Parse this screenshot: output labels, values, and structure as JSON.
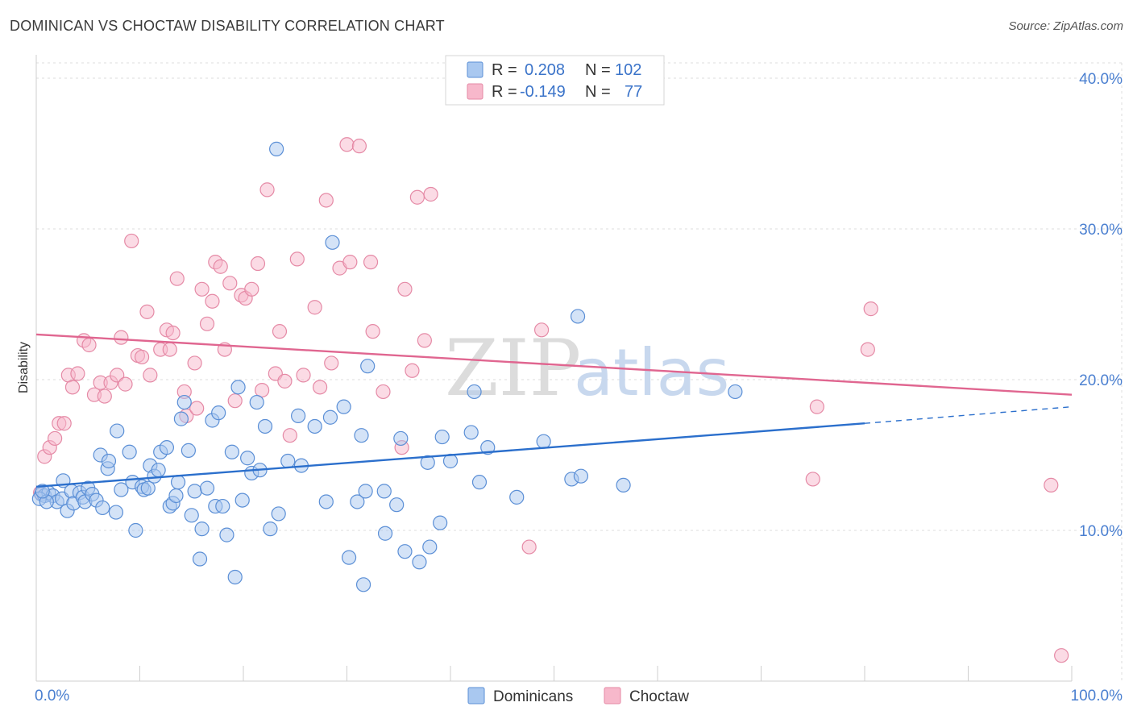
{
  "title": "DOMINICAN VS CHOCTAW DISABILITY CORRELATION CHART",
  "source": "Source: ZipAtlas.com",
  "watermark": {
    "zip": "ZIP",
    "atlas": "atlas"
  },
  "colors": {
    "dominican_fill": "#a9c8f0",
    "dominican_stroke": "#5b8fd6",
    "dominican_line": "#2b6fcc",
    "choctaw_fill": "#f7b8cb",
    "choctaw_stroke": "#e58aa6",
    "choctaw_line": "#e06690",
    "tick_label": "#4a7fd0",
    "grid": "#dddddd"
  },
  "legend": {
    "rows": [
      {
        "r_label": "R =",
        "r_value": "0.208",
        "n_label": "N =",
        "n_value": "102"
      },
      {
        "r_label": "R =",
        "r_value": "-0.149",
        "n_label": "N =",
        "n_value": "77"
      }
    ]
  },
  "chart_data": {
    "type": "scatter",
    "title": "DOMINICAN VS CHOCTAW DISABILITY CORRELATION CHART",
    "xlabel": "",
    "ylabel": "Disability",
    "xlim": [
      0,
      100
    ],
    "ylim": [
      0,
      40
    ],
    "x_tick_labels": [
      "0.0%",
      "100.0%"
    ],
    "y_ticks": [
      10,
      20,
      30,
      40
    ],
    "y_tick_labels": [
      "10.0%",
      "20.0%",
      "30.0%",
      "40.0%"
    ],
    "grid": true,
    "legend_position": "top-center",
    "series": [
      {
        "name": "Dominicans",
        "r": 0.208,
        "n": 102,
        "trend": {
          "x0": 0,
          "y0": 12.9,
          "x1": 80,
          "y1": 17.1,
          "dashed_to_x": 100,
          "dashed_to_y": 18.2
        },
        "points": [
          [
            0.5,
            12.4
          ],
          [
            0.8,
            12.3
          ],
          [
            1.2,
            12.5
          ],
          [
            1.6,
            12.3
          ],
          [
            2.0,
            11.9
          ],
          [
            2.5,
            12.1
          ],
          [
            2.6,
            13.3
          ],
          [
            3.0,
            11.3
          ],
          [
            3.4,
            12.6
          ],
          [
            3.6,
            11.8
          ],
          [
            4.2,
            12.5
          ],
          [
            4.5,
            12.2
          ],
          [
            4.7,
            11.9
          ],
          [
            5.0,
            12.8
          ],
          [
            5.4,
            12.4
          ],
          [
            5.8,
            12.0
          ],
          [
            6.2,
            15.0
          ],
          [
            6.4,
            11.5
          ],
          [
            6.9,
            14.1
          ],
          [
            7.0,
            14.6
          ],
          [
            7.7,
            11.2
          ],
          [
            7.8,
            16.6
          ],
          [
            8.2,
            12.7
          ],
          [
            9.0,
            15.2
          ],
          [
            9.3,
            13.2
          ],
          [
            9.6,
            10.0
          ],
          [
            10.2,
            12.9
          ],
          [
            10.4,
            12.7
          ],
          [
            10.8,
            12.8
          ],
          [
            11.0,
            14.3
          ],
          [
            11.4,
            13.6
          ],
          [
            11.8,
            14.0
          ],
          [
            12.0,
            15.2
          ],
          [
            12.6,
            15.5
          ],
          [
            12.9,
            11.6
          ],
          [
            13.2,
            11.8
          ],
          [
            13.5,
            12.3
          ],
          [
            13.7,
            13.2
          ],
          [
            14.0,
            17.4
          ],
          [
            14.3,
            18.5
          ],
          [
            14.7,
            15.3
          ],
          [
            15.0,
            11.0
          ],
          [
            15.3,
            12.6
          ],
          [
            15.8,
            8.1
          ],
          [
            16.0,
            10.1
          ],
          [
            16.5,
            12.8
          ],
          [
            17.0,
            17.3
          ],
          [
            17.3,
            11.6
          ],
          [
            17.6,
            17.8
          ],
          [
            18.0,
            11.6
          ],
          [
            18.4,
            9.7
          ],
          [
            18.9,
            15.2
          ],
          [
            19.2,
            6.9
          ],
          [
            19.5,
            19.5
          ],
          [
            19.9,
            12.0
          ],
          [
            20.4,
            14.8
          ],
          [
            20.8,
            13.8
          ],
          [
            21.3,
            18.5
          ],
          [
            21.6,
            14.0
          ],
          [
            22.1,
            16.9
          ],
          [
            22.6,
            10.1
          ],
          [
            23.2,
            35.3
          ],
          [
            23.4,
            11.1
          ],
          [
            24.3,
            14.6
          ],
          [
            25.3,
            17.6
          ],
          [
            25.6,
            14.3
          ],
          [
            26.9,
            16.9
          ],
          [
            28.0,
            11.9
          ],
          [
            28.4,
            17.5
          ],
          [
            28.6,
            29.1
          ],
          [
            29.7,
            18.2
          ],
          [
            30.2,
            8.2
          ],
          [
            31.0,
            11.9
          ],
          [
            31.4,
            16.3
          ],
          [
            31.6,
            6.4
          ],
          [
            31.8,
            12.6
          ],
          [
            32.0,
            20.9
          ],
          [
            33.7,
            9.8
          ],
          [
            33.6,
            12.6
          ],
          [
            34.8,
            11.7
          ],
          [
            35.2,
            16.1
          ],
          [
            35.6,
            8.6
          ],
          [
            37.0,
            7.9
          ],
          [
            37.8,
            14.5
          ],
          [
            38.0,
            8.9
          ],
          [
            39.0,
            10.5
          ],
          [
            39.2,
            16.2
          ],
          [
            40.0,
            14.6
          ],
          [
            42.0,
            16.5
          ],
          [
            42.3,
            19.2
          ],
          [
            42.8,
            13.2
          ],
          [
            43.6,
            15.5
          ],
          [
            46.4,
            12.2
          ],
          [
            49.0,
            15.9
          ],
          [
            51.7,
            13.4
          ],
          [
            52.3,
            24.2
          ],
          [
            52.6,
            13.6
          ],
          [
            56.7,
            13.0
          ],
          [
            67.5,
            19.2
          ],
          [
            0.3,
            12.1
          ],
          [
            1.0,
            11.9
          ],
          [
            0.6,
            12.6
          ]
        ]
      },
      {
        "name": "Choctaw",
        "r": -0.149,
        "n": 77,
        "trend": {
          "x0": 0,
          "y0": 23.0,
          "x1": 100,
          "y1": 19.0
        },
        "points": [
          [
            0.4,
            12.5
          ],
          [
            0.8,
            14.9
          ],
          [
            1.3,
            15.5
          ],
          [
            1.8,
            16.1
          ],
          [
            2.2,
            17.1
          ],
          [
            2.7,
            17.1
          ],
          [
            3.1,
            20.3
          ],
          [
            3.5,
            19.5
          ],
          [
            4.0,
            20.4
          ],
          [
            4.6,
            22.6
          ],
          [
            5.1,
            22.3
          ],
          [
            5.6,
            19.0
          ],
          [
            6.2,
            19.8
          ],
          [
            6.6,
            18.9
          ],
          [
            7.2,
            19.8
          ],
          [
            7.8,
            20.3
          ],
          [
            8.2,
            22.8
          ],
          [
            8.6,
            19.7
          ],
          [
            9.2,
            29.2
          ],
          [
            9.8,
            21.6
          ],
          [
            10.2,
            21.5
          ],
          [
            10.7,
            24.5
          ],
          [
            11.0,
            20.3
          ],
          [
            12.0,
            22.0
          ],
          [
            12.6,
            23.3
          ],
          [
            12.9,
            22.0
          ],
          [
            13.2,
            23.1
          ],
          [
            13.6,
            26.7
          ],
          [
            14.3,
            19.2
          ],
          [
            14.5,
            17.6
          ],
          [
            15.3,
            21.1
          ],
          [
            15.5,
            18.1
          ],
          [
            16.0,
            26.0
          ],
          [
            16.5,
            23.7
          ],
          [
            17.0,
            25.2
          ],
          [
            17.3,
            27.8
          ],
          [
            17.8,
            27.5
          ],
          [
            18.2,
            22.0
          ],
          [
            18.7,
            26.4
          ],
          [
            19.2,
            18.6
          ],
          [
            19.8,
            25.6
          ],
          [
            20.2,
            25.4
          ],
          [
            20.8,
            26.0
          ],
          [
            21.4,
            27.7
          ],
          [
            21.8,
            19.3
          ],
          [
            22.3,
            32.6
          ],
          [
            23.1,
            20.4
          ],
          [
            23.5,
            23.2
          ],
          [
            24.0,
            19.9
          ],
          [
            24.5,
            16.3
          ],
          [
            25.2,
            28.0
          ],
          [
            25.8,
            20.3
          ],
          [
            26.9,
            24.8
          ],
          [
            27.4,
            19.5
          ],
          [
            28.0,
            31.9
          ],
          [
            28.5,
            21.1
          ],
          [
            29.3,
            27.4
          ],
          [
            30.0,
            35.6
          ],
          [
            30.3,
            27.8
          ],
          [
            31.2,
            35.5
          ],
          [
            32.3,
            27.8
          ],
          [
            32.5,
            23.2
          ],
          [
            33.5,
            19.2
          ],
          [
            35.3,
            15.5
          ],
          [
            35.6,
            26.0
          ],
          [
            36.3,
            20.6
          ],
          [
            36.8,
            32.1
          ],
          [
            37.5,
            22.6
          ],
          [
            38.1,
            32.3
          ],
          [
            47.6,
            8.9
          ],
          [
            48.8,
            23.3
          ],
          [
            75.0,
            13.4
          ],
          [
            75.4,
            18.2
          ],
          [
            80.3,
            22.0
          ],
          [
            80.6,
            24.7
          ],
          [
            98.0,
            13.0
          ],
          [
            99.0,
            1.7
          ]
        ]
      }
    ]
  },
  "bottom_legend": [
    {
      "label": "Dominicans"
    },
    {
      "label": "Choctaw"
    }
  ]
}
